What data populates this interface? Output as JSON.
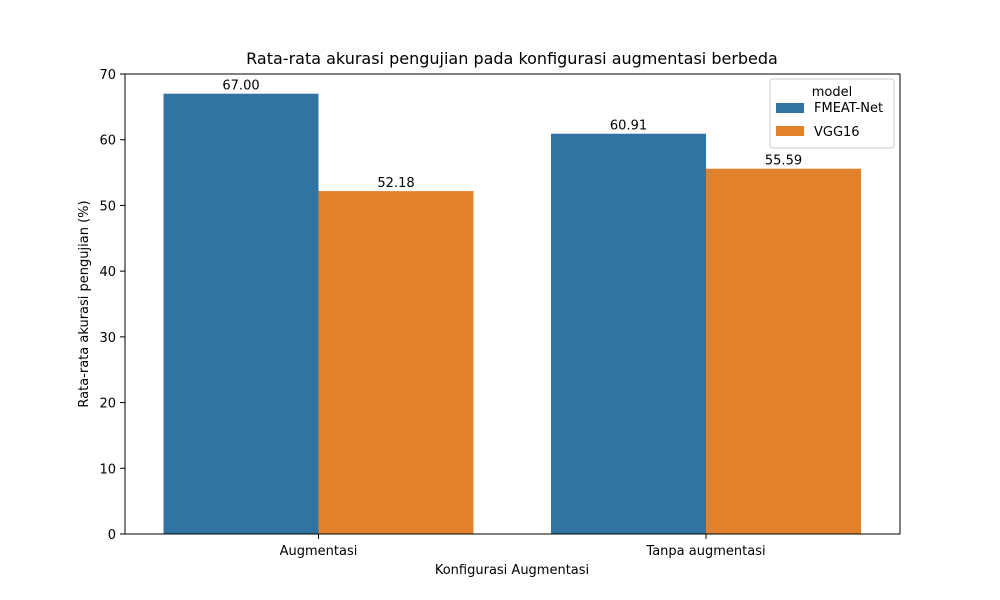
{
  "chart_data": {
    "type": "bar",
    "title": "Rata-rata akurasi pengujian pada konfigurasi augmentasi berbeda",
    "xlabel": "Konfigurasi Augmentasi",
    "ylabel": "Rata-rata akurasi pengujian (%)",
    "categories": [
      "Augmentasi",
      "Tanpa augmentasi"
    ],
    "series": [
      {
        "name": "FMEAT-Net",
        "color": "#3274a1",
        "values": [
          67.0,
          60.91
        ],
        "labels": [
          "67.00",
          "60.91"
        ]
      },
      {
        "name": "VGG16",
        "color": "#e1812c",
        "values": [
          52.18,
          55.59
        ],
        "labels": [
          "52.18",
          "55.59"
        ]
      }
    ],
    "ylim": [
      0,
      70
    ],
    "yticks": [
      0,
      10,
      20,
      30,
      40,
      50,
      60,
      70
    ],
    "grid": false,
    "legend": {
      "title": "model",
      "placement": "top-right"
    }
  }
}
